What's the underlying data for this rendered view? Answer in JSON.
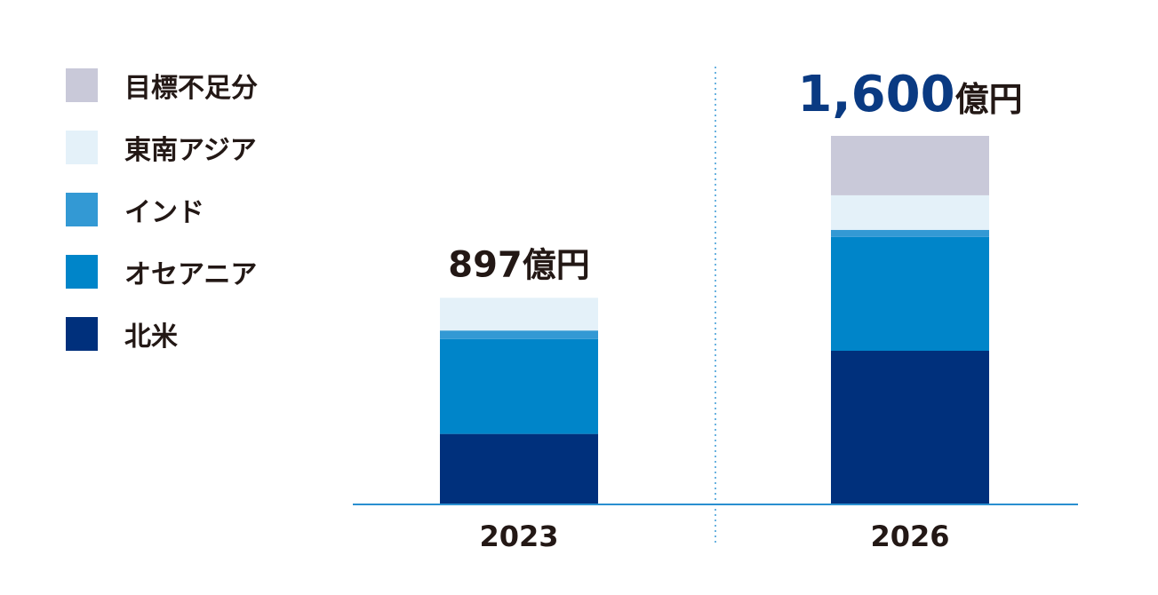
{
  "chart_data": {
    "type": "bar",
    "stacked": true,
    "title": "",
    "xlabel": "",
    "ylabel": "",
    "unit": "億円",
    "categories": [
      "2023",
      "2026"
    ],
    "totals_labels": [
      {
        "number": "897",
        "unit": "億円"
      },
      {
        "number": "1,600",
        "unit": "億円"
      }
    ],
    "series": [
      {
        "name": "北米",
        "color": "#00307c",
        "values": [
          306,
          667
        ]
      },
      {
        "name": "オセアニア",
        "color": "#0085c9",
        "values": [
          412,
          494
        ]
      },
      {
        "name": "インド",
        "color": "#3399d4",
        "values": [
          37,
          31
        ]
      },
      {
        "name": "東南アジア",
        "color": "#e4f1f9",
        "values": [
          142,
          150
        ]
      },
      {
        "name": "目標不足分",
        "color": "#c9c9d9",
        "values": [
          0,
          258
        ]
      }
    ],
    "ylim": [
      0,
      1600
    ],
    "grid": false,
    "legend_position": "top-left",
    "total_label_colors": [
      "#231815",
      "#0a3a82"
    ]
  }
}
